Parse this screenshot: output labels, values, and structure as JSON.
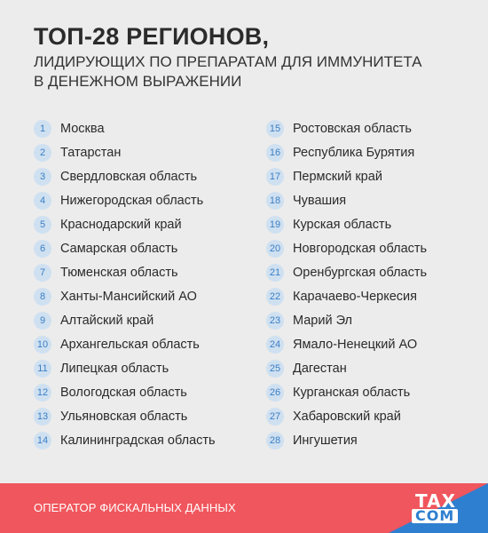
{
  "header": {
    "title": "ТОП-28 РЕГИОНОВ,",
    "subtitle_line1": "ЛИДИРУЮЩИХ ПО ПРЕПАРАТАМ ДЛЯ ИММУНИТЕТА",
    "subtitle_line2": "В ДЕНЕЖНОМ ВЫРАЖЕНИИ"
  },
  "regions_left": [
    {
      "rank": "1",
      "name": "Москва"
    },
    {
      "rank": "2",
      "name": "Татарстан"
    },
    {
      "rank": "3",
      "name": "Свердловская область"
    },
    {
      "rank": "4",
      "name": "Нижегородская область"
    },
    {
      "rank": "5",
      "name": "Краснодарский край"
    },
    {
      "rank": "6",
      "name": "Самарская область"
    },
    {
      "rank": "7",
      "name": "Тюменская область"
    },
    {
      "rank": "8",
      "name": "Ханты-Мансийский АО"
    },
    {
      "rank": "9",
      "name": "Алтайский край"
    },
    {
      "rank": "10",
      "name": "Архангельская область"
    },
    {
      "rank": "11",
      "name": "Липецкая область"
    },
    {
      "rank": "12",
      "name": "Вологодская область"
    },
    {
      "rank": "13",
      "name": "Ульяновская область"
    },
    {
      "rank": "14",
      "name": "Калининградская область"
    }
  ],
  "regions_right": [
    {
      "rank": "15",
      "name": "Ростовская область"
    },
    {
      "rank": "16",
      "name": "Республика Бурятия"
    },
    {
      "rank": "17",
      "name": "Пермский край"
    },
    {
      "rank": "18",
      "name": "Чувашия"
    },
    {
      "rank": "19",
      "name": "Курская область"
    },
    {
      "rank": "20",
      "name": "Новгородская область"
    },
    {
      "rank": "21",
      "name": "Оренбургская область"
    },
    {
      "rank": "22",
      "name": "Карачаево-Черкесия"
    },
    {
      "rank": "23",
      "name": "Марий Эл"
    },
    {
      "rank": "24",
      "name": "Ямало-Ненецкий АО"
    },
    {
      "rank": "25",
      "name": "Дагестан"
    },
    {
      "rank": "26",
      "name": "Курганская область"
    },
    {
      "rank": "27",
      "name": "Хабаровский край"
    },
    {
      "rank": "28",
      "name": "Ингушетия"
    }
  ],
  "footer": {
    "text": "ОПЕРАТОР ФИСКАЛЬНЫХ ДАННЫХ",
    "logo_top": "TAX",
    "logo_bottom": "COM"
  },
  "colors": {
    "background": "#ececec",
    "badge_bg": "#cfe0f1",
    "badge_text": "#3a7fc4",
    "footer_red": "#f0565d",
    "footer_blue": "#2f7fd0"
  }
}
